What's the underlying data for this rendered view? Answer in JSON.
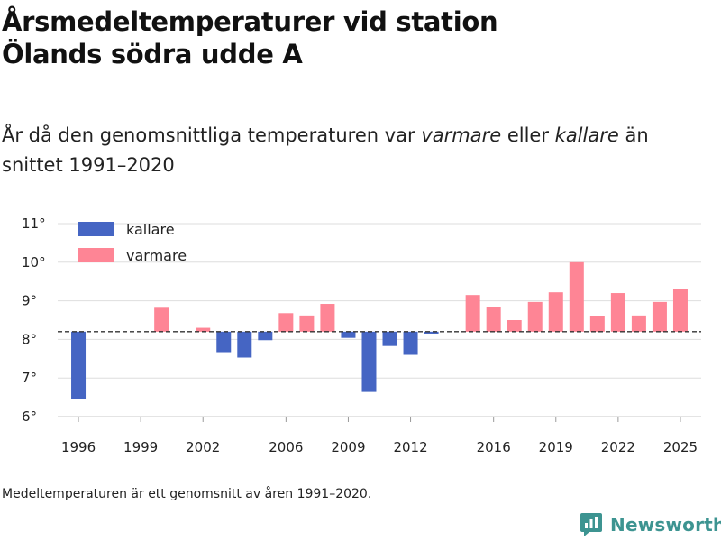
{
  "title_line1": "Årsmedeltemperaturer vid station",
  "title_line2": "Ölands södra udde A",
  "subtitle": {
    "part1": "År då den genomsnittliga temperaturen var ",
    "warm_word": "varmare",
    "part2": " eller ",
    "cold_word": "kallare",
    "part3": " än snittet 1991–2020"
  },
  "footnote": "Medeltemperaturen är ett genomsnitt av åren 1991–2020.",
  "brand": "Newsworthy",
  "chart_data": {
    "type": "bar",
    "title": "Årsmedeltemperaturer vid station Ölands södra udde A",
    "baseline": 8.2,
    "baseline_style": "dashed",
    "ylim": [
      6,
      11
    ],
    "yticks": [
      6,
      7,
      8,
      9,
      10,
      11
    ],
    "y_tick_suffix": "°",
    "xlim": [
      1995,
      2026
    ],
    "xticks": [
      1996,
      1999,
      2002,
      2006,
      2009,
      2012,
      2016,
      2019,
      2022,
      2025
    ],
    "legend": [
      {
        "key": "kallare",
        "label": "kallare",
        "color": "#4565c3"
      },
      {
        "key": "varmare",
        "label": "varmare",
        "color": "#fe8595"
      }
    ],
    "legend_position": "top-left",
    "x": [
      1996,
      2000,
      2002,
      2003,
      2004,
      2005,
      2006,
      2007,
      2008,
      2009,
      2010,
      2011,
      2012,
      2013,
      2015,
      2016,
      2017,
      2018,
      2019,
      2020,
      2021,
      2022,
      2023,
      2024,
      2025
    ],
    "values": [
      6.45,
      8.82,
      8.3,
      7.67,
      7.53,
      7.98,
      8.68,
      8.62,
      8.92,
      8.04,
      6.64,
      7.83,
      7.6,
      8.15,
      9.15,
      8.85,
      8.5,
      8.97,
      9.22,
      10.0,
      8.6,
      9.2,
      8.62,
      8.97,
      9.3
    ]
  }
}
